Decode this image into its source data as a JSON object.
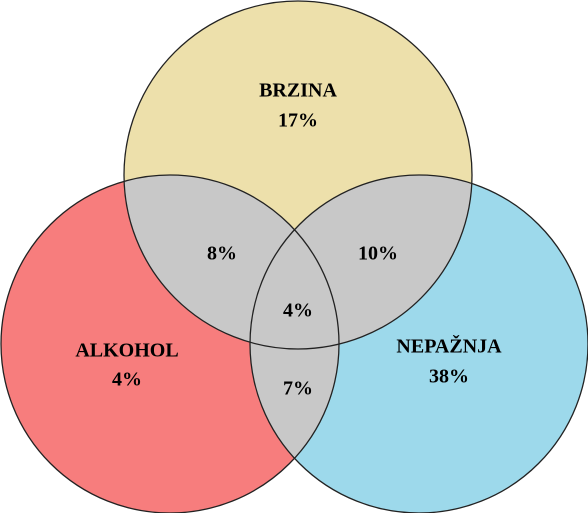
{
  "sets": [
    {
      "label": "BRZINA",
      "value": "17%"
    },
    {
      "label": "ALKOHOL",
      "value": "4%"
    },
    {
      "label": "NEPAŽNJA",
      "value": "38%"
    }
  ],
  "overlaps": {
    "brzina_alkohol": "8%",
    "brzina_nepaznja": "10%",
    "alkohol_nepaznja": "7%",
    "all": "4%"
  }
}
